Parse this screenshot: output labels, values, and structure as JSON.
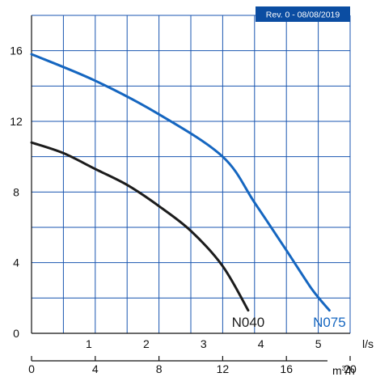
{
  "revision_badge": "Rev. 0 - 08/08/2019",
  "colors": {
    "grid": "#1a56b0",
    "axis": "#111111",
    "badge_bg": "#0b4da2",
    "N040": "#1c1c1c",
    "N075": "#1566c0"
  },
  "chart_data": {
    "type": "line",
    "title": "",
    "ylim": [
      0,
      18
    ],
    "xlim": [
      0,
      20
    ],
    "grid": true,
    "x_axis_primary": {
      "unit": "m³/h",
      "unit_base": "m",
      "unit_sup": "3",
      "unit_tail": "/h",
      "ticks": [
        0,
        4,
        8,
        12,
        16,
        20
      ],
      "tick_labels": [
        "0",
        "4",
        "8",
        "12",
        "16",
        "20"
      ]
    },
    "x_axis_secondary": {
      "unit": "l/s",
      "ticks_ls": [
        1,
        2,
        3,
        4,
        5
      ],
      "tick_labels": [
        "1",
        "2",
        "3",
        "4",
        "5"
      ]
    },
    "y_axis": {
      "ticks": [
        0,
        4,
        8,
        12,
        16
      ],
      "tick_labels": [
        "0",
        "4",
        "8",
        "12",
        "16"
      ]
    },
    "series": [
      {
        "name": "N040",
        "color": "#1c1c1c",
        "x": [
          0,
          2,
          4,
          6,
          8,
          10,
          12,
          13.6
        ],
        "y": [
          10.8,
          10.2,
          9.3,
          8.4,
          7.2,
          5.8,
          3.8,
          1.3
        ]
      },
      {
        "name": "N075",
        "color": "#1566c0",
        "x": [
          0,
          4,
          8,
          12,
          14,
          16,
          17.6,
          18.7
        ],
        "y": [
          15.8,
          14.3,
          12.4,
          10.0,
          7.4,
          4.7,
          2.5,
          1.3
        ]
      }
    ]
  }
}
